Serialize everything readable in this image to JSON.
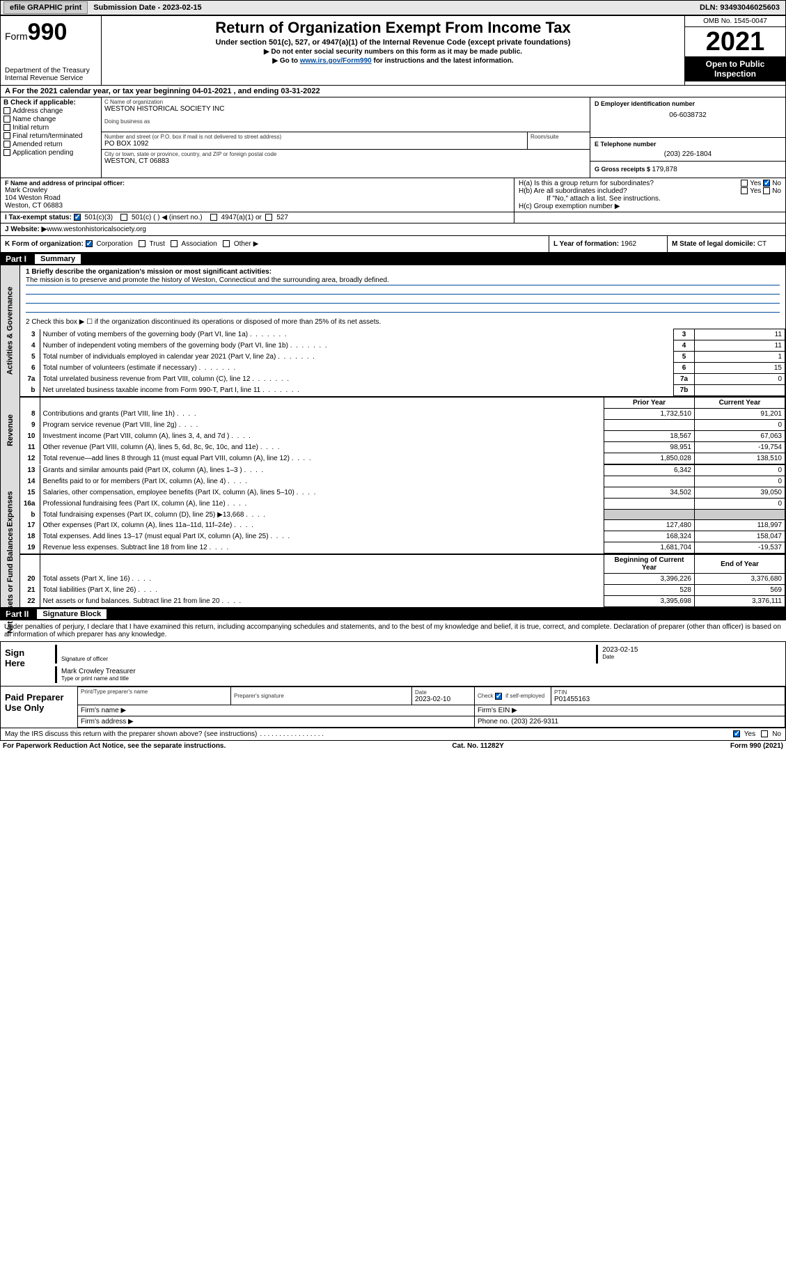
{
  "topbar": {
    "efile": "efile GRAPHIC print",
    "subdate_label": "Submission Date - ",
    "subdate": "2023-02-15",
    "dln_label": "DLN: ",
    "dln": "93493046025603"
  },
  "header": {
    "form_prefix": "Form",
    "form_num": "990",
    "dept": "Department of the Treasury",
    "irs": "Internal Revenue Service",
    "title": "Return of Organization Exempt From Income Tax",
    "sub1": "Under section 501(c), 527, or 4947(a)(1) of the Internal Revenue Code (except private foundations)",
    "sub2": "▶ Do not enter social security numbers on this form as it may be made public.",
    "sub3_a": "▶ Go to ",
    "sub3_link": "www.irs.gov/Form990",
    "sub3_b": " for instructions and the latest information.",
    "omb": "OMB No. 1545-0047",
    "year": "2021",
    "openpub": "Open to Public Inspection"
  },
  "period": {
    "text_a": "For the 2021 calendar year, or tax year beginning ",
    "begin": "04-01-2021",
    "text_b": " , and ending ",
    "end": "03-31-2022"
  },
  "sectionB": {
    "title": "B Check if applicable:",
    "items": [
      "Address change",
      "Name change",
      "Initial return",
      "Final return/terminated",
      "Amended return",
      "Application pending"
    ]
  },
  "sectionC": {
    "name_label": "C Name of organization",
    "name": "WESTON HISTORICAL SOCIETY INC",
    "dba_label": "Doing business as",
    "addr_label": "Number and street (or P.O. box if mail is not delivered to street address)",
    "room_label": "Room/suite",
    "addr": "PO BOX 1092",
    "city_label": "City or town, state or province, country, and ZIP or foreign postal code",
    "city": "WESTON, CT  06883"
  },
  "sectionD": {
    "label": "D Employer identification number",
    "value": "06-6038732"
  },
  "sectionE": {
    "label": "E Telephone number",
    "value": "(203) 226-1804"
  },
  "sectionG": {
    "label": "G Gross receipts $ ",
    "value": "179,878"
  },
  "sectionF": {
    "label": "F Name and address of principal officer:",
    "name": "Mark Crowley",
    "addr1": "104 Weston Road",
    "addr2": "Weston, CT  06883"
  },
  "sectionH": {
    "a_label": "H(a)  Is this a group return for subordinates?",
    "b_label": "H(b)  Are all subordinates included?",
    "b_note": "If \"No,\" attach a list. See instructions.",
    "c_label": "H(c)  Group exemption number ▶",
    "yes": "Yes",
    "no": "No"
  },
  "sectionI": {
    "label": "I   Tax-exempt status:",
    "opts": [
      "501(c)(3)",
      "501(c) (  ) ◀ (insert no.)",
      "4947(a)(1) or",
      "527"
    ]
  },
  "sectionJ": {
    "label": "J   Website: ▶ ",
    "value": "www.westonhistoricalsociety.org"
  },
  "sectionK": {
    "label": "K Form of organization: ",
    "opts": [
      "Corporation",
      "Trust",
      "Association",
      "Other ▶"
    ]
  },
  "sectionL": {
    "label": "L Year of formation: ",
    "value": "1962"
  },
  "sectionM": {
    "label": "M State of legal domicile: ",
    "value": "CT"
  },
  "part1": {
    "header_pt": "Part I",
    "header_name": "Summary",
    "line1_label": "1  Briefly describe the organization's mission or most significant activities:",
    "mission": "The mission is to preserve and promote the history of Weston, Connecticut and the surrounding area, broadly defined.",
    "line2": "2   Check this box ▶ ☐  if the organization discontinued its operations or disposed of more than 25% of its net assets.",
    "vtab_ag": "Activities & Governance",
    "vtab_rev": "Revenue",
    "vtab_exp": "Expenses",
    "vtab_na": "Net Assets or Fund Balances",
    "rows_ag": [
      {
        "n": "3",
        "desc": "Number of voting members of the governing body (Part VI, line 1a)",
        "box": "3",
        "val": "11"
      },
      {
        "n": "4",
        "desc": "Number of independent voting members of the governing body (Part VI, line 1b)",
        "box": "4",
        "val": "11"
      },
      {
        "n": "5",
        "desc": "Total number of individuals employed in calendar year 2021 (Part V, line 2a)",
        "box": "5",
        "val": "1"
      },
      {
        "n": "6",
        "desc": "Total number of volunteers (estimate if necessary)",
        "box": "6",
        "val": "15"
      },
      {
        "n": "7a",
        "desc": "Total unrelated business revenue from Part VIII, column (C), line 12",
        "box": "7a",
        "val": "0"
      },
      {
        "n": "b",
        "desc": "Net unrelated business taxable income from Form 990-T, Part I, line 11",
        "box": "7b",
        "val": ""
      }
    ],
    "col_prior": "Prior Year",
    "col_current": "Current Year",
    "rows_rev": [
      {
        "n": "8",
        "desc": "Contributions and grants (Part VIII, line 1h)",
        "p": "1,732,510",
        "c": "91,201"
      },
      {
        "n": "9",
        "desc": "Program service revenue (Part VIII, line 2g)",
        "p": "",
        "c": "0"
      },
      {
        "n": "10",
        "desc": "Investment income (Part VIII, column (A), lines 3, 4, and 7d )",
        "p": "18,567",
        "c": "67,063"
      },
      {
        "n": "11",
        "desc": "Other revenue (Part VIII, column (A), lines 5, 6d, 8c, 9c, 10c, and 11e)",
        "p": "98,951",
        "c": "-19,754"
      },
      {
        "n": "12",
        "desc": "Total revenue—add lines 8 through 11 (must equal Part VIII, column (A), line 12)",
        "p": "1,850,028",
        "c": "138,510"
      }
    ],
    "rows_exp": [
      {
        "n": "13",
        "desc": "Grants and similar amounts paid (Part IX, column (A), lines 1–3 )",
        "p": "6,342",
        "c": "0"
      },
      {
        "n": "14",
        "desc": "Benefits paid to or for members (Part IX, column (A), line 4)",
        "p": "",
        "c": "0"
      },
      {
        "n": "15",
        "desc": "Salaries, other compensation, employee benefits (Part IX, column (A), lines 5–10)",
        "p": "34,502",
        "c": "39,050"
      },
      {
        "n": "16a",
        "desc": "Professional fundraising fees (Part IX, column (A), line 11e)",
        "p": "",
        "c": "0"
      },
      {
        "n": "b",
        "desc": "Total fundraising expenses (Part IX, column (D), line 25) ▶13,668",
        "p": "GREY",
        "c": "GREY"
      },
      {
        "n": "17",
        "desc": "Other expenses (Part IX, column (A), lines 11a–11d, 11f–24e)",
        "p": "127,480",
        "c": "118,997"
      },
      {
        "n": "18",
        "desc": "Total expenses. Add lines 13–17 (must equal Part IX, column (A), line 25)",
        "p": "168,324",
        "c": "158,047"
      },
      {
        "n": "19",
        "desc": "Revenue less expenses. Subtract line 18 from line 12",
        "p": "1,681,704",
        "c": "-19,537"
      }
    ],
    "col_begin": "Beginning of Current Year",
    "col_end": "End of Year",
    "rows_na": [
      {
        "n": "20",
        "desc": "Total assets (Part X, line 16)",
        "p": "3,396,226",
        "c": "3,376,680"
      },
      {
        "n": "21",
        "desc": "Total liabilities (Part X, line 26)",
        "p": "528",
        "c": "569"
      },
      {
        "n": "22",
        "desc": "Net assets or fund balances. Subtract line 21 from line 20",
        "p": "3,395,698",
        "c": "3,376,111"
      }
    ]
  },
  "part2": {
    "header_pt": "Part II",
    "header_name": "Signature Block",
    "decl": "Under penalties of perjury, I declare that I have examined this return, including accompanying schedules and statements, and to the best of my knowledge and belief, it is true, correct, and complete. Declaration of preparer (other than officer) is based on all information of which preparer has any knowledge.",
    "sign_here": "Sign Here",
    "sig_officer": "Signature of officer",
    "sig_date": "2023-02-15",
    "date_label": "Date",
    "officer_name": "Mark Crowley Treasurer",
    "officer_label": "Type or print name and title",
    "paid_prep": "Paid Preparer Use Only",
    "prep_name_label": "Print/Type preparer's name",
    "prep_sig_label": "Preparer's signature",
    "prep_date_label": "Date",
    "prep_date": "2023-02-10",
    "prep_check_label": "Check ☑ if self-employed",
    "ptin_label": "PTIN",
    "ptin": "P01455163",
    "firm_name_label": "Firm's name    ▶",
    "firm_ein_label": "Firm's EIN ▶",
    "firm_addr_label": "Firm's address ▶",
    "firm_phone_label": "Phone no. ",
    "firm_phone": "(203) 226-9311",
    "may_irs": "May the IRS discuss this return with the preparer shown above? (see instructions)",
    "yes": "Yes",
    "no": "No"
  },
  "footer": {
    "left": "For Paperwork Reduction Act Notice, see the separate instructions.",
    "center": "Cat. No. 11282Y",
    "right": "Form 990 (2021)"
  }
}
